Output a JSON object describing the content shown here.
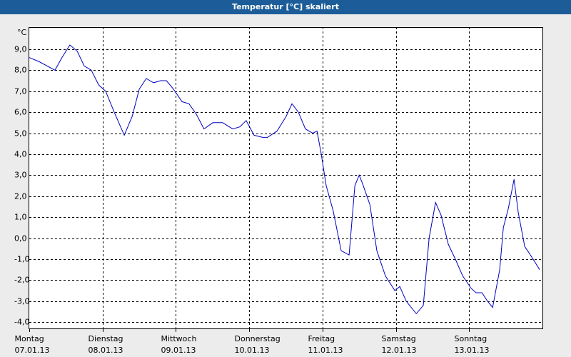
{
  "chart_data": {
    "type": "line",
    "title": "Temperatur [°C] skaliert",
    "y_label": "°C",
    "x": [
      0,
      3.3,
      8.4,
      10.7,
      13.3,
      15.7,
      18.0,
      20.3,
      22.7,
      25.0,
      27.8,
      31.1,
      33.7,
      36.0,
      38.3,
      40.7,
      43.0,
      44.9,
      47.2,
      50.0,
      52.3,
      54.7,
      57.2,
      60.1,
      63.3,
      66.6,
      68.9,
      71.0,
      73.6,
      76.4,
      78.0,
      81.1,
      84.1,
      86.0,
      88.1,
      90.4,
      92.8,
      94.2,
      95.6,
      97.2,
      99.5,
      102.1,
      104.7,
      106.6,
      108.0,
      109.1,
      111.5,
      113.8,
      116.6,
      119.7,
      121.3,
      123.4,
      126.7,
      129.0,
      130.9,
      133.0,
      134.8,
      137.2,
      139.5,
      141.9,
      144.7,
      146.3,
      148.2,
      150.0,
      151.7,
      154.0,
      155.2,
      156.8,
      158.7,
      160.1,
      162.2,
      164.5,
      167.1
    ],
    "values": [
      8.6,
      8.4,
      8.0,
      8.6,
      9.2,
      8.9,
      8.2,
      8.0,
      7.3,
      7.0,
      6.0,
      4.9,
      5.8,
      7.1,
      7.6,
      7.4,
      7.5,
      7.5,
      7.1,
      6.5,
      6.4,
      5.9,
      5.2,
      5.5,
      5.5,
      5.2,
      5.3,
      5.6,
      4.9,
      4.8,
      4.8,
      5.1,
      5.8,
      6.4,
      6.0,
      5.2,
      5.0,
      5.1,
      4.0,
      2.5,
      1.3,
      -0.6,
      -0.8,
      2.5,
      3.0,
      2.6,
      1.6,
      -0.6,
      -1.8,
      -2.5,
      -2.3,
      -3.0,
      -3.6,
      -3.2,
      0.0,
      1.7,
      1.1,
      -0.3,
      -1.0,
      -1.8,
      -2.4,
      -2.6,
      -2.6,
      -3.0,
      -3.3,
      -1.5,
      0.5,
      1.4,
      2.8,
      1.2,
      -0.4,
      -0.9,
      -1.5
    ],
    "color": "#0000c0",
    "xlim": [
      0,
      168
    ],
    "ylim": [
      -4.3,
      10.05
    ],
    "xticks": [
      {
        "value": 0,
        "label": "Montag"
      },
      {
        "value": 24,
        "label": "Dienstag"
      },
      {
        "value": 48,
        "label": "Mittwoch"
      },
      {
        "value": 72,
        "label": "Donnerstag"
      },
      {
        "value": 96,
        "label": "Freitag"
      },
      {
        "value": 120,
        "label": "Samstag"
      },
      {
        "value": 144,
        "label": "Sonntag"
      }
    ],
    "xtick_dates": [
      "07.01.13",
      "08.01.13",
      "09.01.13",
      "10.01.13",
      "11.01.13",
      "12.01.13",
      "13.01.13"
    ],
    "yticks": [
      {
        "value": 9,
        "label": "9,0"
      },
      {
        "value": 8,
        "label": "8,0"
      },
      {
        "value": 7,
        "label": "7,0"
      },
      {
        "value": 6,
        "label": "6,0"
      },
      {
        "value": 5,
        "label": "5,0"
      },
      {
        "value": 4,
        "label": "4,0"
      },
      {
        "value": 3,
        "label": "3,0"
      },
      {
        "value": 2,
        "label": "2,0"
      },
      {
        "value": 1,
        "label": "1,0"
      },
      {
        "value": 0,
        "label": "0,0"
      },
      {
        "value": -1,
        "label": "-1,0"
      },
      {
        "value": -2,
        "label": "-2,0"
      },
      {
        "value": -3,
        "label": "-3,0"
      },
      {
        "value": -4,
        "label": "-4,0"
      }
    ],
    "grid": true
  }
}
